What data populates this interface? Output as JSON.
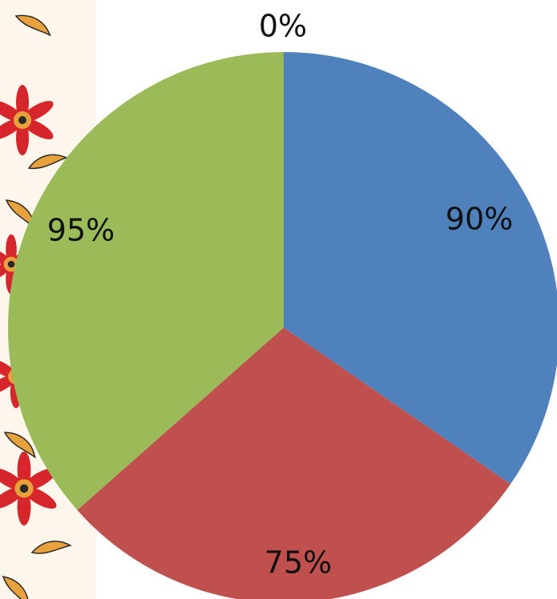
{
  "chart_data": {
    "type": "pie",
    "categories": [
      "",
      "",
      "",
      ""
    ],
    "values": [
      90,
      75,
      95,
      0
    ],
    "slice_shares": [
      0.3462,
      0.2885,
      0.3653,
      0.0
    ],
    "data_labels": [
      "90%",
      "75%",
      "95%",
      "0%"
    ],
    "colors": [
      "#4F81BD",
      "#C0504D",
      "#9BBB59",
      "#8064A2"
    ],
    "start_angle_deg": 0,
    "direction": "clockwise",
    "title": "",
    "legend": "none"
  },
  "decoration": {
    "ornament_icon": "floral-border-ornament",
    "ornament_colors": [
      "#D7262B",
      "#E9A23B",
      "#2A2A2A",
      "#F6E6C8"
    ]
  }
}
